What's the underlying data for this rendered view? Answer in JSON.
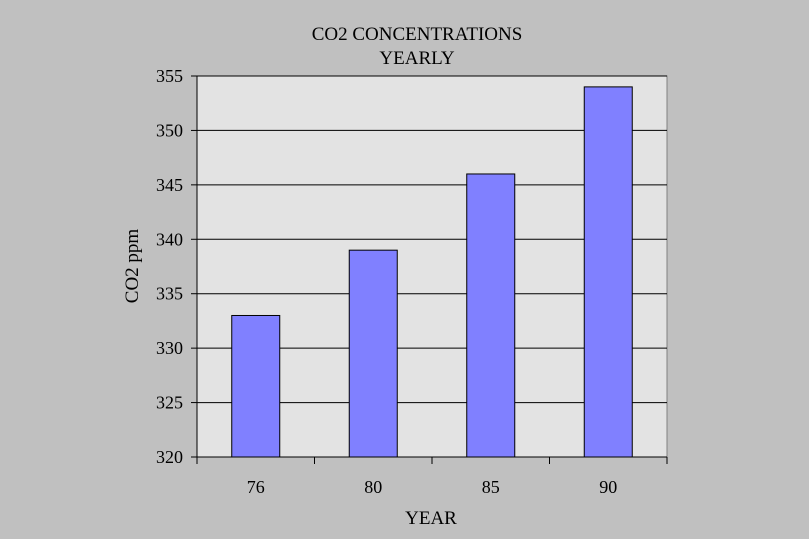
{
  "chart_data": {
    "type": "bar",
    "title_lines": [
      "CO2 CONCENTRATIONS",
      "YEARLY"
    ],
    "xlabel": "YEAR",
    "ylabel": "CO2 ppm",
    "categories": [
      "76",
      "80",
      "85",
      "90"
    ],
    "values": [
      333,
      339,
      346,
      354
    ],
    "ylim": [
      320,
      355
    ],
    "ytick_step": 5,
    "y_ticks": [
      "320",
      "325",
      "330",
      "335",
      "340",
      "345",
      "350",
      "355"
    ],
    "grid": true,
    "legend": "none",
    "colors": {
      "background": "#c0c0c0",
      "plot_area": "#e3e3e3",
      "bar": "#8080ff",
      "bar_outline": "#000000",
      "grid": "#000000"
    }
  }
}
